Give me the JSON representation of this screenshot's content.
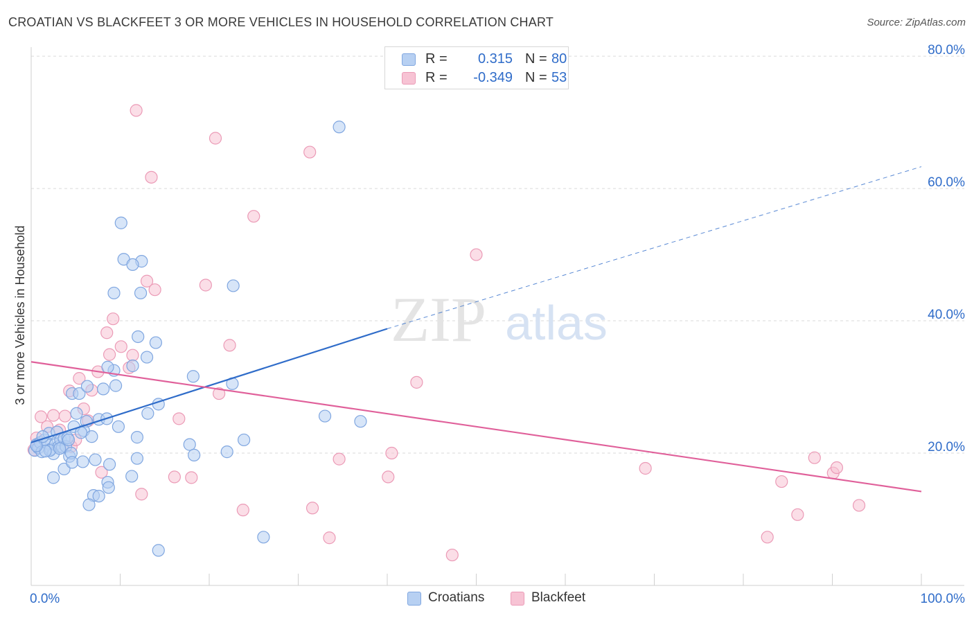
{
  "title": "CROATIAN VS BLACKFEET 3 OR MORE VEHICLES IN HOUSEHOLD CORRELATION CHART",
  "source": "Source: ZipAtlas.com",
  "watermark": {
    "zip": "ZIP",
    "atlas": "atlas"
  },
  "colors": {
    "blue": "#2f6cc9",
    "blue_fill": "#b7d0f2",
    "blue_stroke": "#7fa6e0",
    "pink": "#e0609a",
    "pink_fill": "#f7c3d4",
    "pink_stroke": "#eb9ab6",
    "axis_label": "#2f6cc9",
    "grid": "#d9d9d9"
  },
  "legend": {
    "rows": [
      {
        "r_label": "R =",
        "r_value": "0.315",
        "n_label": "N =",
        "n_value": "80",
        "color": "blue"
      },
      {
        "r_label": "R =",
        "r_value": "-0.349",
        "n_label": "N =",
        "n_value": "53",
        "color": "pink"
      }
    ]
  },
  "bottom_legend": {
    "croatians": "Croatians",
    "blackfeet": "Blackfeet"
  },
  "chart_data": {
    "type": "scatter",
    "title": "CROATIAN VS BLACKFEET 3 OR MORE VEHICLES IN HOUSEHOLD CORRELATION CHART",
    "xlabel": "",
    "ylabel": "3 or more Vehicles in Household",
    "xlim": [
      0,
      100
    ],
    "ylim": [
      0,
      82
    ],
    "x_tick_labels": [
      "0.0%",
      "100.0%"
    ],
    "y_ticks": [
      20,
      40,
      60,
      80
    ],
    "y_tick_labels": [
      "20.0%",
      "40.0%",
      "60.0%",
      "80.0%"
    ],
    "grid": true,
    "legend_position": "top-center",
    "series": [
      {
        "name": "Croatians",
        "color": "blue",
        "r": 0.315,
        "n": 80,
        "trend": {
          "x0": 0,
          "y0": 21.6,
          "x1": 40,
          "y1": 38.8,
          "dashed_to_x": 100,
          "dashed_to_y": 63.3
        },
        "points": [
          [
            0.4,
            20.4
          ],
          [
            0.6,
            21.3
          ],
          [
            0.8,
            20.8
          ],
          [
            1.0,
            21.6
          ],
          [
            1.2,
            20.2
          ],
          [
            1.5,
            22.0
          ],
          [
            1.8,
            21.5
          ],
          [
            2.0,
            23.0
          ],
          [
            2.2,
            20.6
          ],
          [
            2.5,
            19.9
          ],
          [
            2.7,
            21.3
          ],
          [
            2.9,
            23.2
          ],
          [
            3.1,
            21.0
          ],
          [
            3.3,
            22.0
          ],
          [
            3.5,
            20.9
          ],
          [
            3.7,
            22.2
          ],
          [
            3.9,
            21.0
          ],
          [
            4.1,
            22.3
          ],
          [
            4.3,
            19.5
          ],
          [
            4.5,
            20.0
          ],
          [
            2.5,
            16.3
          ],
          [
            3.7,
            17.6
          ],
          [
            4.6,
            18.6
          ],
          [
            5.8,
            18.7
          ],
          [
            7.2,
            19.0
          ],
          [
            8.8,
            18.3
          ],
          [
            11.9,
            19.2
          ],
          [
            11.3,
            16.5
          ],
          [
            8.6,
            15.6
          ],
          [
            8.7,
            14.8
          ],
          [
            7.0,
            13.6
          ],
          [
            7.6,
            13.5
          ],
          [
            6.5,
            12.2
          ],
          [
            4.6,
            29.0
          ],
          [
            5.1,
            26.0
          ],
          [
            6.2,
            24.8
          ],
          [
            7.6,
            25.1
          ],
          [
            8.5,
            25.2
          ],
          [
            9.8,
            24.0
          ],
          [
            5.9,
            23.4
          ],
          [
            5.4,
            29.0
          ],
          [
            6.3,
            30.1
          ],
          [
            8.1,
            29.7
          ],
          [
            9.5,
            30.2
          ],
          [
            9.3,
            32.5
          ],
          [
            11.4,
            33.2
          ],
          [
            11.9,
            22.4
          ],
          [
            13.1,
            26.0
          ],
          [
            14.3,
            27.4
          ],
          [
            17.8,
            21.3
          ],
          [
            18.3,
            19.7
          ],
          [
            18.2,
            31.6
          ],
          [
            22.6,
            30.5
          ],
          [
            22.0,
            20.2
          ],
          [
            23.9,
            22.0
          ],
          [
            26.1,
            7.3
          ],
          [
            33.0,
            25.6
          ],
          [
            37.0,
            24.8
          ],
          [
            9.3,
            44.2
          ],
          [
            10.4,
            49.3
          ],
          [
            12.4,
            49.0
          ],
          [
            11.4,
            48.5
          ],
          [
            12.3,
            44.2
          ],
          [
            13.0,
            34.5
          ],
          [
            12.0,
            37.6
          ],
          [
            14.0,
            36.7
          ],
          [
            22.7,
            45.3
          ],
          [
            10.1,
            54.8
          ],
          [
            14.3,
            5.3
          ],
          [
            34.6,
            69.3
          ],
          [
            6.8,
            22.5
          ],
          [
            4.8,
            24.0
          ],
          [
            8.6,
            33.0
          ],
          [
            5.6,
            23.1
          ],
          [
            2.1,
            20.4
          ],
          [
            1.6,
            20.3
          ],
          [
            4.2,
            22.0
          ],
          [
            0.6,
            21.1
          ],
          [
            1.3,
            22.5
          ],
          [
            3.2,
            20.7
          ]
        ]
      },
      {
        "name": "Blackfeet",
        "color": "pink",
        "r": -0.349,
        "n": 53,
        "trend": {
          "x0": 0,
          "y0": 33.8,
          "x1": 100,
          "y1": 14.2
        },
        "points": [
          [
            0.3,
            20.5
          ],
          [
            0.6,
            22.3
          ],
          [
            1.1,
            25.5
          ],
          [
            1.8,
            24.0
          ],
          [
            2.5,
            25.7
          ],
          [
            3.2,
            23.5
          ],
          [
            3.8,
            25.6
          ],
          [
            4.5,
            21.0
          ],
          [
            5.0,
            22.0
          ],
          [
            4.3,
            29.4
          ],
          [
            5.4,
            31.3
          ],
          [
            5.9,
            26.7
          ],
          [
            6.4,
            24.9
          ],
          [
            6.8,
            29.5
          ],
          [
            7.5,
            32.3
          ],
          [
            7.9,
            17.1
          ],
          [
            8.5,
            38.2
          ],
          [
            8.8,
            34.9
          ],
          [
            9.2,
            40.3
          ],
          [
            10.1,
            36.1
          ],
          [
            11.0,
            32.9
          ],
          [
            11.4,
            34.8
          ],
          [
            12.4,
            13.8
          ],
          [
            13.0,
            46.0
          ],
          [
            13.9,
            44.7
          ],
          [
            16.1,
            16.4
          ],
          [
            16.6,
            25.2
          ],
          [
            18.0,
            16.3
          ],
          [
            19.6,
            45.4
          ],
          [
            21.1,
            29.0
          ],
          [
            22.3,
            36.3
          ],
          [
            23.8,
            11.4
          ],
          [
            11.8,
            71.8
          ],
          [
            20.7,
            67.6
          ],
          [
            13.5,
            61.7
          ],
          [
            25.0,
            55.8
          ],
          [
            31.3,
            65.5
          ],
          [
            31.6,
            11.7
          ],
          [
            33.5,
            7.2
          ],
          [
            34.6,
            19.1
          ],
          [
            40.1,
            16.4
          ],
          [
            40.5,
            20.0
          ],
          [
            43.3,
            30.7
          ],
          [
            47.3,
            4.6
          ],
          [
            50.0,
            50.0
          ],
          [
            69.0,
            17.7
          ],
          [
            82.7,
            7.3
          ],
          [
            84.3,
            15.7
          ],
          [
            86.1,
            10.7
          ],
          [
            88.0,
            19.3
          ],
          [
            90.1,
            17.0
          ],
          [
            90.5,
            17.8
          ],
          [
            93.0,
            12.1
          ]
        ]
      }
    ]
  }
}
